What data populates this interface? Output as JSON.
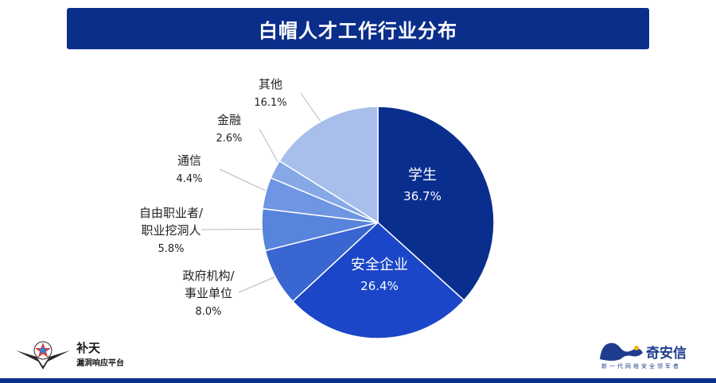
{
  "title": "白帽人才工作行业分布",
  "chart_data": {
    "type": "pie",
    "title": "白帽人才工作行业分布",
    "slices": [
      {
        "label": "学生",
        "value": 36.7,
        "display": "36.7%",
        "color": "#0a2e8e",
        "label_color": "#ffffff"
      },
      {
        "label": "安全企业",
        "value": 26.4,
        "display": "26.4%",
        "color": "#1b46c7",
        "label_color": "#ffffff"
      },
      {
        "label": "政府机构/事业单位",
        "value": 8.0,
        "display": "8.0%",
        "color": "#3a66d2",
        "label_color": "#333333"
      },
      {
        "label": "自由职业者/职业挖洞人",
        "value": 5.8,
        "display": "5.8%",
        "color": "#5884dc",
        "label_color": "#333333"
      },
      {
        "label": "通信",
        "value": 4.4,
        "display": "4.4%",
        "color": "#6e96e2",
        "label_color": "#333333"
      },
      {
        "label": "金融",
        "value": 2.6,
        "display": "2.6%",
        "color": "#86a8e6",
        "label_color": "#333333"
      },
      {
        "label": "其他",
        "value": 16.1,
        "display": "16.1%",
        "color": "#a8bfec",
        "label_color": "#333333"
      }
    ]
  },
  "logo_left": {
    "line1": "补天",
    "line2": "漏洞响应平台"
  },
  "logo_right": {
    "brand": "奇安信",
    "slogan": "新一代网络安全领军者"
  },
  "colors": {
    "title_bar": "#0b2e8a",
    "bottom_bar": "#0b2e8a"
  }
}
